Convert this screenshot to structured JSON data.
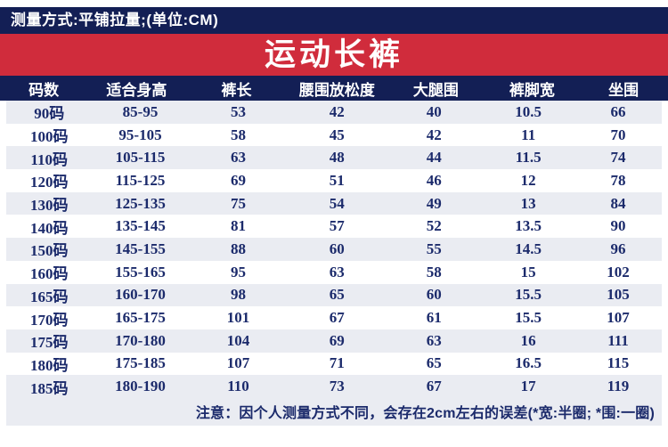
{
  "meta_bar": {
    "text": "测量方式:平铺拉量;(单位:CM)"
  },
  "banner": {
    "title": "运动长裤"
  },
  "chart_data": {
    "type": "table",
    "title": "运动长裤",
    "measure_note": "测量方式:平铺拉量;(单位:CM)",
    "columns": [
      "码数",
      "适合身高",
      "裤长",
      "腰围放松度",
      "大腿围",
      "裤脚宽",
      "坐围"
    ],
    "rows": [
      [
        "90码",
        "85-95",
        "53",
        "42",
        "40",
        "10.5",
        "66"
      ],
      [
        "100码",
        "95-105",
        "58",
        "45",
        "42",
        "11",
        "70"
      ],
      [
        "110码",
        "105-115",
        "63",
        "48",
        "44",
        "11.5",
        "74"
      ],
      [
        "120码",
        "115-125",
        "69",
        "51",
        "46",
        "12",
        "78"
      ],
      [
        "130码",
        "125-135",
        "75",
        "54",
        "49",
        "13",
        "84"
      ],
      [
        "140码",
        "135-145",
        "81",
        "57",
        "52",
        "13.5",
        "90"
      ],
      [
        "150码",
        "145-155",
        "88",
        "60",
        "55",
        "14.5",
        "96"
      ],
      [
        "160码",
        "155-165",
        "95",
        "63",
        "58",
        "15",
        "102"
      ],
      [
        "165码",
        "160-170",
        "98",
        "65",
        "60",
        "15.5",
        "105"
      ],
      [
        "170码",
        "165-175",
        "101",
        "67",
        "61",
        "15.5",
        "107"
      ],
      [
        "175码",
        "170-180",
        "104",
        "69",
        "63",
        "16",
        "111"
      ],
      [
        "180码",
        "175-185",
        "107",
        "71",
        "65",
        "16.5",
        "115"
      ],
      [
        "185码",
        "180-190",
        "110",
        "73",
        "67",
        "17",
        "119"
      ]
    ],
    "footnote": "注意：因个人测量方式不同，会存在2cm左右的误差(*宽:半圈; *围:一圈)"
  },
  "colors": {
    "navy": "#131f55",
    "red": "#d02c3c",
    "stripe": "#eaecf2",
    "data_text": "#1b2a6b"
  }
}
